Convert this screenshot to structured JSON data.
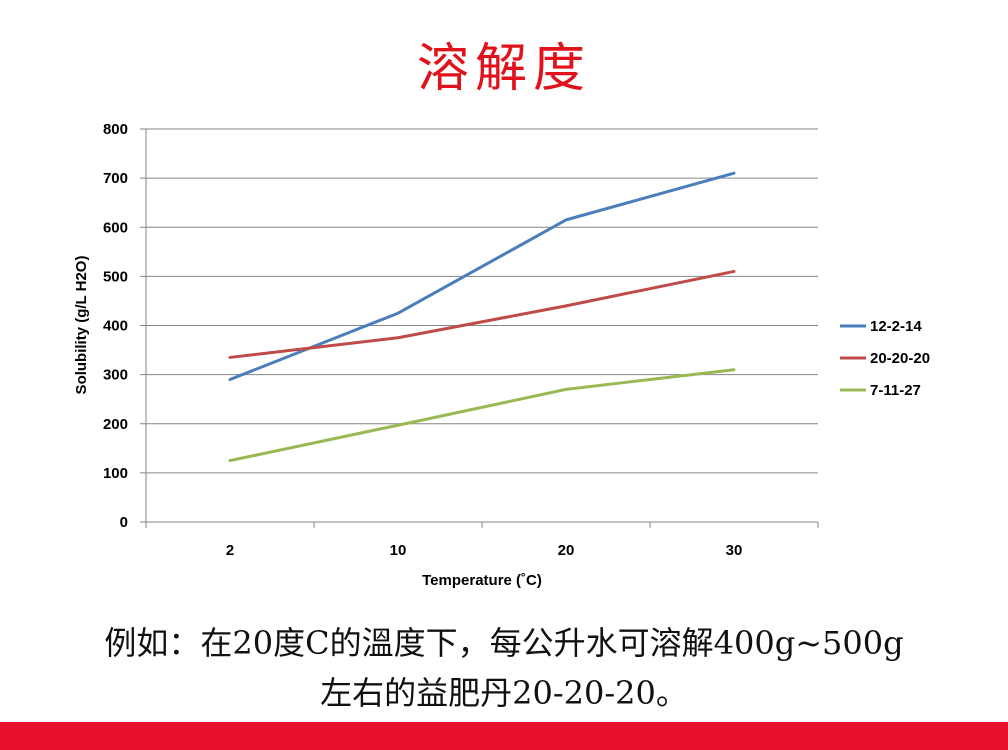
{
  "slide": {
    "title": "溶解度",
    "caption_line1": "例如：在20度C的溫度下，每公升水可溶解400g~500g",
    "caption_line2": "左右的益肥丹20-20-20。",
    "footer_color": "#e8112d"
  },
  "chart_data": {
    "type": "line",
    "categories": [
      "2",
      "10",
      "20",
      "30"
    ],
    "series": [
      {
        "name": "12-2-14",
        "values": [
          290,
          425,
          615,
          710
        ],
        "color": "#4a7ebb"
      },
      {
        "name": "20-20-20",
        "values": [
          335,
          375,
          440,
          510
        ],
        "color": "#be4b48"
      },
      {
        "name": "7-11-27",
        "values": [
          125,
          197,
          270,
          310
        ],
        "color": "#98b954"
      }
    ],
    "xlabel": "Temperature (˚C)",
    "ylabel": "Solubility  (g/L H2O)",
    "ylim": [
      0,
      800
    ],
    "yticks": [
      "0",
      "100",
      "200",
      "300",
      "400",
      "500",
      "600",
      "700",
      "800"
    ],
    "grid": true,
    "legend": "right"
  }
}
